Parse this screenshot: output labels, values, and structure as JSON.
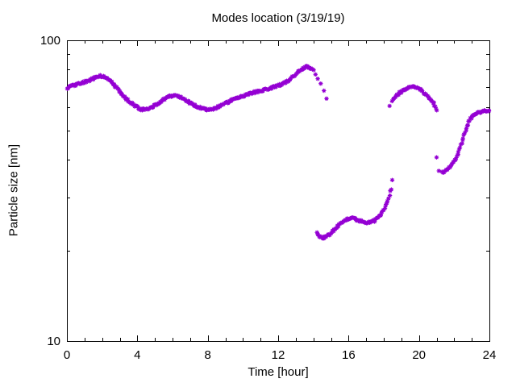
{
  "chart_data": {
    "type": "scatter",
    "title": "Modes location (3/19/19)",
    "xlabel": "Time [hour]",
    "ylabel": "Particle size [nm]",
    "x_axis": {
      "min": 0,
      "max": 24,
      "major_ticks": [
        0,
        4,
        8,
        12,
        16,
        20,
        24
      ],
      "minor_tick_step": 1
    },
    "y_axis": {
      "scale": "log",
      "min": 10,
      "max": 100,
      "labeled_ticks": [
        10,
        100
      ],
      "minor_ticks": [
        20,
        30,
        40,
        50,
        60,
        70,
        80,
        90
      ]
    },
    "grid": "off",
    "legend": "none",
    "marker": {
      "shape": "asterisk",
      "color": "#9400D3"
    },
    "series": [
      {
        "name": "mode-band-1",
        "style": "dense",
        "points": [
          [
            0,
            69.5
          ],
          [
            0.25,
            70.4
          ],
          [
            0.5,
            71.2
          ],
          [
            0.75,
            71.9
          ],
          [
            1,
            72.6
          ],
          [
            1.2,
            73.2
          ],
          [
            1.4,
            74.2
          ],
          [
            1.6,
            75.2
          ],
          [
            1.8,
            75.9
          ],
          [
            2,
            76.1
          ],
          [
            2.2,
            75.4
          ],
          [
            2.4,
            73.9
          ],
          [
            2.6,
            72
          ],
          [
            2.8,
            69.8
          ],
          [
            3,
            67.6
          ],
          [
            3.2,
            65.6
          ],
          [
            3.4,
            63.8
          ],
          [
            3.6,
            62.2
          ],
          [
            3.8,
            60.9
          ],
          [
            4,
            59.9
          ],
          [
            4.2,
            59.1
          ],
          [
            4.4,
            58.8
          ],
          [
            4.6,
            59.1
          ],
          [
            4.8,
            59.8
          ],
          [
            5,
            60.8
          ],
          [
            5.2,
            61.9
          ],
          [
            5.4,
            63
          ],
          [
            5.6,
            64.1
          ],
          [
            5.8,
            65
          ],
          [
            6,
            65.6
          ],
          [
            6.2,
            65.5
          ],
          [
            6.4,
            64.9
          ],
          [
            6.6,
            64
          ],
          [
            6.8,
            63
          ],
          [
            7,
            62
          ],
          [
            7.2,
            61
          ],
          [
            7.4,
            60.2
          ],
          [
            7.6,
            59.6
          ],
          [
            7.8,
            59.1
          ],
          [
            8,
            58.8
          ],
          [
            8.2,
            58.9
          ],
          [
            8.4,
            59.3
          ],
          [
            8.6,
            60
          ],
          [
            8.8,
            60.8
          ],
          [
            9,
            61.7
          ],
          [
            9.2,
            62.5
          ],
          [
            9.4,
            63.3
          ],
          [
            9.6,
            64
          ],
          [
            9.8,
            64.7
          ],
          [
            10,
            65.3
          ],
          [
            10.25,
            66.1
          ],
          [
            10.5,
            66.8
          ],
          [
            10.75,
            67.4
          ],
          [
            11,
            68
          ],
          [
            11.25,
            68.6
          ],
          [
            11.5,
            69.2
          ],
          [
            11.75,
            69.9
          ],
          [
            12,
            70.7
          ],
          [
            12.2,
            71.5
          ],
          [
            12.4,
            72.5
          ],
          [
            12.6,
            73.8
          ],
          [
            12.8,
            75.4
          ],
          [
            13,
            77.2
          ],
          [
            13.2,
            79.1
          ],
          [
            13.4,
            80.7
          ],
          [
            13.55,
            81.6
          ],
          [
            13.7,
            81.6
          ],
          [
            13.85,
            80.7
          ],
          [
            14,
            79.2
          ]
        ]
      },
      {
        "name": "mode-band-1-falling-tail",
        "style": "sparse",
        "points": [
          [
            14.12,
            77
          ],
          [
            14.25,
            74.5
          ],
          [
            14.42,
            71.8
          ],
          [
            14.6,
            68
          ],
          [
            14.75,
            64
          ]
        ]
      },
      {
        "name": "mode-band-2",
        "style": "dense",
        "points": [
          [
            14.18,
            23.1
          ],
          [
            14.3,
            22.5
          ],
          [
            14.45,
            22.1
          ],
          [
            14.6,
            22.1
          ],
          [
            14.8,
            22.4
          ],
          [
            15,
            22.9
          ],
          [
            15.2,
            23.5
          ],
          [
            15.4,
            24.2
          ],
          [
            15.6,
            24.8
          ],
          [
            15.8,
            25.2
          ],
          [
            16,
            25.5
          ],
          [
            16.2,
            25.6
          ],
          [
            16.4,
            25.4
          ],
          [
            16.6,
            25.2
          ],
          [
            16.8,
            25
          ],
          [
            17,
            24.8
          ],
          [
            17.2,
            24.8
          ],
          [
            17.4,
            25
          ],
          [
            17.6,
            25.5
          ],
          [
            17.8,
            26.2
          ],
          [
            18,
            27.3
          ],
          [
            18.15,
            28.5
          ],
          [
            18.3,
            30.3
          ],
          [
            18.42,
            32.2
          ]
        ]
      },
      {
        "name": "mode-band-2-top-point",
        "style": "sparse",
        "points": [
          [
            18.48,
            34.3
          ]
        ]
      },
      {
        "name": "mode-band-3-start-point",
        "style": "sparse",
        "points": [
          [
            18.33,
            60.5
          ]
        ]
      },
      {
        "name": "mode-band-3",
        "style": "dense",
        "points": [
          [
            18.5,
            63
          ],
          [
            18.62,
            64.6
          ],
          [
            18.75,
            65.8
          ],
          [
            18.9,
            66.8
          ],
          [
            19.05,
            67.7
          ],
          [
            19.2,
            68.5
          ],
          [
            19.35,
            69.1
          ],
          [
            19.5,
            69.6
          ],
          [
            19.65,
            69.9
          ],
          [
            19.8,
            69.9
          ],
          [
            19.95,
            69.4
          ],
          [
            20.1,
            68.4
          ],
          [
            20.25,
            67.1
          ],
          [
            20.4,
            65.9
          ],
          [
            20.55,
            64.8
          ],
          [
            20.7,
            63.4
          ],
          [
            20.85,
            61.5
          ],
          [
            20.95,
            59.7
          ],
          [
            21.05,
            58.2
          ]
        ]
      },
      {
        "name": "mode-band-4-start-points",
        "style": "sparse",
        "points": [
          [
            21,
            40.8
          ],
          [
            21.13,
            36.8
          ]
        ]
      },
      {
        "name": "mode-band-4",
        "style": "dense",
        "points": [
          [
            21.3,
            36.3
          ],
          [
            21.45,
            36.7
          ],
          [
            21.6,
            37.2
          ],
          [
            21.75,
            37.9
          ],
          [
            21.9,
            38.8
          ],
          [
            22.05,
            40.1
          ],
          [
            22.2,
            42
          ],
          [
            22.35,
            44.3
          ],
          [
            22.5,
            47
          ],
          [
            22.62,
            49.6
          ],
          [
            22.75,
            52
          ],
          [
            22.88,
            54.2
          ],
          [
            23,
            55.7
          ],
          [
            23.15,
            56.7
          ],
          [
            23.3,
            57.3
          ],
          [
            23.5,
            57.8
          ],
          [
            23.7,
            58.2
          ],
          [
            23.85,
            58.4
          ],
          [
            24,
            58.6
          ]
        ]
      }
    ]
  }
}
